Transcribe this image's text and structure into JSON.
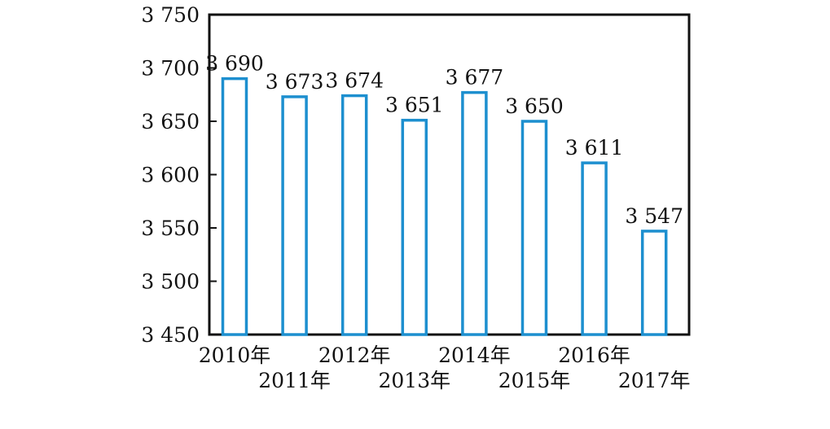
{
  "chart_data": {
    "type": "bar",
    "categories": [
      "2010年",
      "2011年",
      "2012年",
      "2013年",
      "2014年",
      "2015年",
      "2016年",
      "2017年"
    ],
    "values": [
      3690,
      3673,
      3674,
      3651,
      3677,
      3650,
      3611,
      3547
    ],
    "value_labels": [
      "3 690",
      "3 673",
      "3 674",
      "3 651",
      "3 677",
      "3 650",
      "3 611",
      "3 547"
    ],
    "title": "",
    "xlabel": "",
    "ylabel": "",
    "ylim": [
      3450,
      3750
    ],
    "yticks": [
      3450,
      3500,
      3550,
      3600,
      3650,
      3700,
      3750
    ],
    "ytick_labels": [
      "3 450",
      "3 500",
      "3 550",
      "3 600",
      "3 650",
      "3 700",
      "3 750"
    ],
    "grid": false,
    "colors": {
      "bar_outline": "#1d8fcf",
      "bar_fill": "#ffffff",
      "frame": "#111111"
    }
  }
}
